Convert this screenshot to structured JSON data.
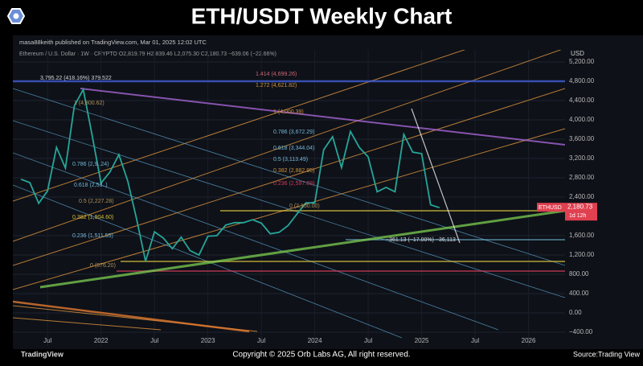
{
  "header": {
    "title": "ETH/USDT Weekly Chart"
  },
  "publish_line": "masa88keith published on TradingView.com, Mar 01, 2025 12:02 UTC",
  "symbol_line": "Ethereum / U.S. Dollar · 1W · CRYPTO  O2,819.79  H2,839.46  L2,075.30  C2,180.73  −639.06 (−22.66%)",
  "currency": "USD",
  "price_tag": {
    "symbol": "ETHUSD",
    "price": "2,180.73",
    "countdown": "1d 12h"
  },
  "chart_data": {
    "type": "line",
    "categories": [
      null,
      null,
      null,
      "Jul",
      null,
      null,
      null,
      null,
      null,
      "2022",
      null,
      null,
      null,
      null,
      null,
      "Jul",
      null,
      null,
      null,
      null,
      null,
      "2023",
      null,
      null,
      null,
      null,
      null,
      "Jul",
      null,
      null,
      null,
      null,
      null,
      "2024",
      null,
      null,
      null,
      null,
      null,
      "Jul",
      null,
      null,
      null,
      null,
      null,
      "2025",
      null,
      null,
      null,
      null,
      null,
      "Jul",
      null,
      null,
      null,
      null,
      null,
      "2026",
      null
    ],
    "series": [
      {
        "name": "ETHUSD",
        "color": "#26a69a",
        "values": [
          2770,
          2700,
          2270,
          2530,
          3430,
          3000,
          4290,
          4630,
          3680,
          2690,
          2920,
          3280,
          2730,
          1940,
          1070,
          1680,
          1550,
          1330,
          1570,
          1290,
          1200,
          1590,
          1600,
          1820,
          1870,
          1870,
          1930,
          1860,
          1640,
          1670,
          1810,
          2050,
          2280,
          2280,
          3380,
          3650,
          3010,
          3760,
          3430,
          3230,
          2510,
          2600,
          2510,
          3700,
          3330,
          3300,
          2240,
          2180.73,
          null,
          null,
          null,
          null,
          null,
          null,
          null,
          null,
          null,
          null,
          null
        ]
      }
    ],
    "ylim": [
      -683,
      5450
    ],
    "yticks": [
      {
        "value": 5200,
        "label": "5,200.00"
      },
      {
        "value": 4800,
        "label": "4,800.00"
      },
      {
        "value": 4400,
        "label": "4,400.00"
      },
      {
        "value": 4000,
        "label": "4,000.00"
      },
      {
        "value": 3600,
        "label": "3,600.00"
      },
      {
        "value": 3200,
        "label": "3,200.00"
      },
      {
        "value": 2800,
        "label": "2,800.00"
      },
      {
        "value": 2400,
        "label": "2,400.00"
      },
      {
        "value": 1600,
        "label": "1,600.00"
      },
      {
        "value": 1200,
        "label": "1,200.00"
      },
      {
        "value": 800,
        "label": "800.00"
      },
      {
        "value": 400,
        "label": "400.00"
      },
      {
        "value": 0,
        "label": "0.00"
      },
      {
        "value": -400,
        "label": "−400.00"
      }
    ],
    "grid": true,
    "annotations": [
      "3,795.22 (418.16%) 379.522",
      "1 (4,800.62)",
      "0.786 (2,9..24)",
      "0.618 (2,53..)",
      "0.5 (2,227.28)",
      "0.382 (1,904.60)",
      "0.236 (1,511.55)",
      "0 (876.20)",
      "1.414 (4,699.26)",
      "1.272 (4,621.82)",
      "1 (4,000.39)",
      "0.786 (3,672.29)",
      "0.618 (3,344.04)",
      "0.5 (3,113.49)",
      "0.382 (2,882.95)",
      "0.236 (2,597.69)",
      "0 (2,150.00)",
      "−361.13 (−17.00%) −36,113"
    ]
  },
  "footer": {
    "logo": "TradingView",
    "copyright": "Copyright © 2025 Orb Labs AG, All right reserved.",
    "source": "Source:Trading View"
  }
}
